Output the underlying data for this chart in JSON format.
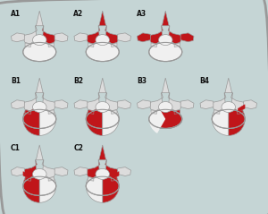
{
  "grid_rows": 3,
  "grid_cols": 4,
  "labels": [
    [
      "A1",
      "A2",
      "A3",
      ""
    ],
    [
      "B1",
      "B2",
      "B3",
      "B4"
    ],
    [
      "C1",
      "C2",
      "",
      ""
    ]
  ],
  "bg_color": "#dde8e8",
  "border_color": "#999999",
  "bone_fill": "#dcdcdc",
  "bone_edge": "#999999",
  "red_color": "#c0161a",
  "white_fill": "#f0f0f0",
  "line_color": "#999999",
  "label_color": "#111111",
  "outer_bg": "#c5d5d5",
  "cell_bg": "#e8eeee"
}
